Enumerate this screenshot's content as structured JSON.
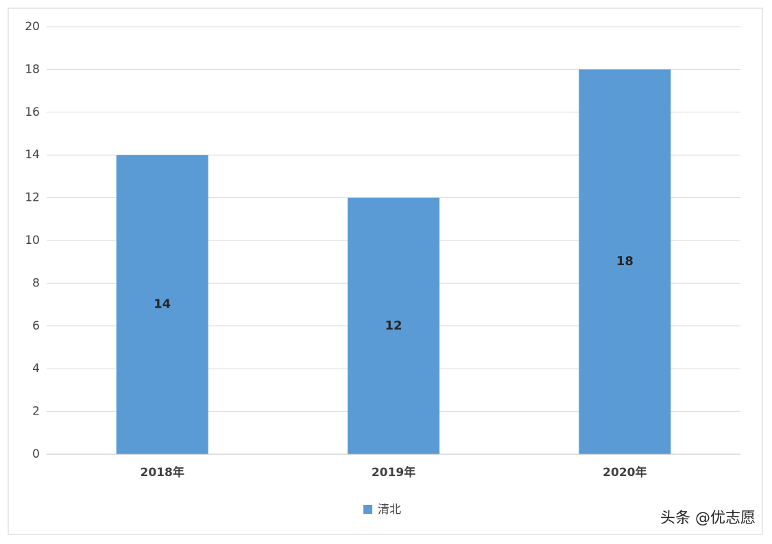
{
  "chart_data": {
    "type": "bar",
    "categories": [
      "2018年",
      "2019年",
      "2020年"
    ],
    "series": [
      {
        "name": "清北",
        "color": "#5b9bd5",
        "values": [
          14,
          12,
          18
        ]
      }
    ],
    "ylim": [
      0,
      20
    ],
    "yticks": [
      0,
      2,
      4,
      6,
      8,
      10,
      12,
      14,
      16,
      18,
      20
    ],
    "grid": true,
    "legend": "bottom",
    "show_value_labels": true,
    "credit": "头条 @优志愿"
  }
}
